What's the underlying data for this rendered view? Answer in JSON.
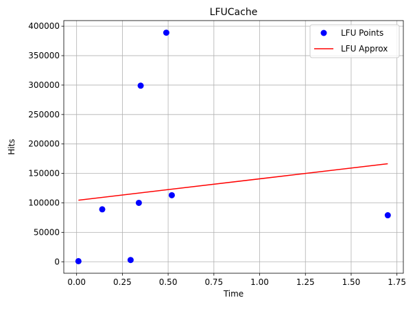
{
  "chart_data": {
    "type": "scatter",
    "title": "LFUCache",
    "xlabel": "Time",
    "ylabel": "Hits",
    "xlim": [
      -0.07,
      1.785
    ],
    "ylim": [
      -19500,
      409500
    ],
    "x_ticks": [
      0.0,
      0.25,
      0.5,
      0.75,
      1.0,
      1.25,
      1.5,
      1.75
    ],
    "x_tick_labels": [
      "0.00",
      "0.25",
      "0.50",
      "0.75",
      "1.00",
      "1.25",
      "1.50",
      "1.75"
    ],
    "y_ticks": [
      0,
      50000,
      100000,
      150000,
      200000,
      250000,
      300000,
      350000,
      400000
    ],
    "y_tick_labels": [
      "0",
      "50000",
      "100000",
      "150000",
      "200000",
      "250000",
      "300000",
      "350000",
      "400000"
    ],
    "grid": true,
    "legend_position": "top-right",
    "series": [
      {
        "name": "LFU Points",
        "kind": "scatter",
        "color": "#0000ff",
        "x": [
          0.01,
          0.14,
          0.295,
          0.34,
          0.35,
          0.49,
          0.52,
          1.7
        ],
        "y": [
          1000,
          89000,
          3000,
          100000,
          299000,
          389000,
          113000,
          79000
        ]
      },
      {
        "name": "LFU Approx",
        "kind": "line",
        "color": "#ff0000",
        "x": [
          0.01,
          1.7
        ],
        "y": [
          104500,
          166500
        ]
      }
    ]
  }
}
